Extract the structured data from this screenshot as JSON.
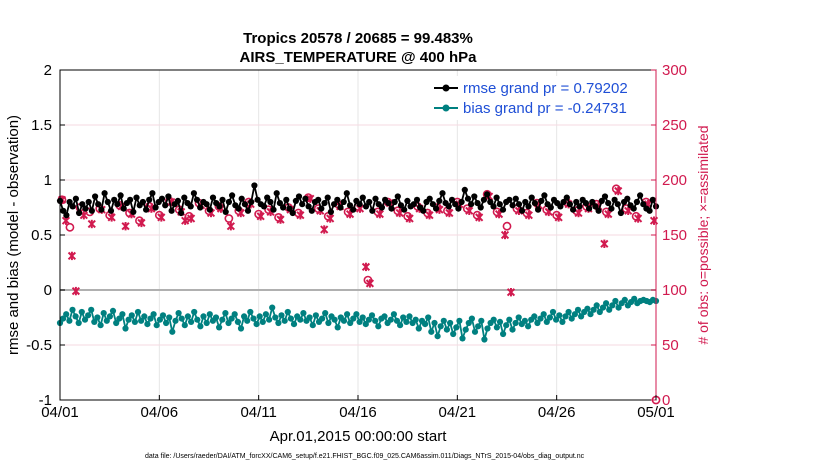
{
  "chart_data": {
    "type": "line",
    "title_line1": "Tropics 20578 / 20685 = 99.483%",
    "title_line2": "AIRS_TEMPERATURE @ 400 hPa",
    "xlabel": "Apr.01,2015 00:00:00 start",
    "ylabel_left": "rmse and bias (model - observation)",
    "ylabel_right": "# of obs: o=possible; ×=assimilated",
    "xlim": [
      0,
      30
    ],
    "ylim_left": [
      -1,
      2
    ],
    "ylim_right": [
      0,
      300
    ],
    "x_ticks": [
      0,
      5,
      10,
      15,
      20,
      25,
      30
    ],
    "x_tick_labels": [
      "04/01",
      "04/06",
      "04/11",
      "04/16",
      "04/21",
      "04/26",
      "05/01"
    ],
    "y_ticks_left": [
      -1,
      -0.5,
      0,
      0.5,
      1,
      1.5,
      2
    ],
    "y_tick_labels_left": [
      "-1",
      "-0.5",
      "0",
      "0.5",
      "1",
      "1.5",
      "2"
    ],
    "y_ticks_right": [
      0,
      50,
      100,
      150,
      200,
      250,
      300
    ],
    "y_tick_labels_right": [
      "0",
      "50",
      "100",
      "150",
      "200",
      "250",
      "300"
    ],
    "grid": true,
    "legend_position": "top-right",
    "footnote": "data file: /Users/raeder/DAI/ATM_forcXX/CAM6_setup/f.e21.FHIST_BGC.f09_025.CAM6assim.011/Diags_NTrS_2015-04/obs_diag_output.nc",
    "colors": {
      "rmse": "#000000",
      "bias": "#008080",
      "obs": "#d11a4f",
      "legend_text": "#1f4fd6",
      "zero_line": "#b0b0b0"
    },
    "series": [
      {
        "name": "rmse grand pr = 0.79202",
        "axis": "left",
        "values": [
          0.81,
          0.72,
          0.68,
          0.8,
          0.76,
          0.83,
          0.7,
          0.78,
          0.74,
          0.8,
          0.72,
          0.85,
          0.78,
          0.73,
          0.88,
          0.8,
          0.72,
          0.82,
          0.78,
          0.86,
          0.74,
          0.79,
          0.82,
          0.71,
          0.84,
          0.77,
          0.8,
          0.73,
          0.82,
          0.88,
          0.75,
          0.8,
          0.83,
          0.77,
          0.85,
          0.72,
          0.78,
          0.81,
          0.7,
          0.84,
          0.79,
          0.76,
          0.88,
          0.82,
          0.75,
          0.8,
          0.78,
          0.73,
          0.84,
          0.79,
          0.76,
          0.82,
          0.71,
          0.8,
          0.86,
          0.77,
          0.74,
          0.83,
          0.78,
          0.72,
          0.8,
          0.95,
          0.82,
          0.78,
          0.76,
          0.84,
          0.8,
          0.73,
          0.88,
          0.79,
          0.75,
          0.82,
          0.74,
          0.7,
          0.81,
          0.85,
          0.78,
          0.83,
          0.76,
          0.72,
          0.8,
          0.82,
          0.74,
          0.79,
          0.84,
          0.71,
          0.78,
          0.82,
          0.75,
          0.8,
          0.88,
          0.77,
          0.73,
          0.81,
          0.78,
          0.84,
          0.76,
          0.8,
          0.72,
          0.83,
          0.78,
          0.75,
          0.82,
          0.79,
          0.74,
          0.8,
          0.85,
          0.77,
          0.73,
          0.81,
          0.76,
          0.78,
          0.82,
          0.75,
          0.72,
          0.8,
          0.83,
          0.78,
          0.74,
          0.81,
          0.88,
          0.79,
          0.76,
          0.82,
          0.78,
          0.74,
          0.8,
          0.91,
          0.83,
          0.78,
          0.85,
          0.79,
          0.75,
          0.82,
          0.87,
          0.8,
          0.76,
          0.84,
          0.78,
          0.73,
          0.8,
          0.82,
          0.77,
          0.83,
          0.78,
          0.72,
          0.8,
          0.76,
          0.84,
          0.79,
          0.73,
          0.81,
          0.86,
          0.78,
          0.75,
          0.82,
          0.79,
          0.76,
          0.8,
          0.84,
          0.78,
          0.73,
          0.8,
          0.76,
          0.82,
          0.79,
          0.74,
          0.8,
          0.76,
          0.72,
          0.81,
          0.85,
          0.79,
          0.74,
          0.82,
          0.78,
          0.7,
          0.8,
          0.83,
          0.77,
          0.74,
          0.8,
          0.86,
          0.78,
          0.74,
          0.72,
          0.82,
          0.76
        ]
      },
      {
        "name": "bias grand pr = -0.24731",
        "axis": "left",
        "values": [
          -0.3,
          -0.26,
          -0.22,
          -0.28,
          -0.18,
          -0.24,
          -0.3,
          -0.2,
          -0.27,
          -0.23,
          -0.18,
          -0.29,
          -0.25,
          -0.32,
          -0.21,
          -0.28,
          -0.24,
          -0.19,
          -0.3,
          -0.26,
          -0.22,
          -0.35,
          -0.27,
          -0.23,
          -0.29,
          -0.2,
          -0.28,
          -0.24,
          -0.31,
          -0.26,
          -0.22,
          -0.32,
          -0.27,
          -0.23,
          -0.3,
          -0.25,
          -0.38,
          -0.28,
          -0.21,
          -0.26,
          -0.32,
          -0.24,
          -0.29,
          -0.2,
          -0.27,
          -0.33,
          -0.24,
          -0.3,
          -0.22,
          -0.28,
          -0.25,
          -0.34,
          -0.27,
          -0.21,
          -0.3,
          -0.26,
          -0.22,
          -0.29,
          -0.35,
          -0.24,
          -0.28,
          -0.2,
          -0.26,
          -0.31,
          -0.24,
          -0.29,
          -0.22,
          -0.27,
          -0.16,
          -0.25,
          -0.3,
          -0.23,
          -0.28,
          -0.2,
          -0.26,
          -0.31,
          -0.24,
          -0.27,
          -0.21,
          -0.28,
          -0.25,
          -0.32,
          -0.23,
          -0.29,
          -0.26,
          -0.21,
          -0.3,
          -0.24,
          -0.27,
          -0.34,
          -0.25,
          -0.28,
          -0.22,
          -0.3,
          -0.26,
          -0.22,
          -0.29,
          -0.25,
          -0.31,
          -0.27,
          -0.23,
          -0.28,
          -0.33,
          -0.26,
          -0.24,
          -0.3,
          -0.27,
          -0.22,
          -0.28,
          -0.32,
          -0.25,
          -0.29,
          -0.24,
          -0.3,
          -0.27,
          -0.35,
          -0.28,
          -0.31,
          -0.25,
          -0.38,
          -0.3,
          -0.42,
          -0.33,
          -0.28,
          -0.36,
          -0.3,
          -0.4,
          -0.34,
          -0.28,
          -0.44,
          -0.36,
          -0.3,
          -0.26,
          -0.38,
          -0.33,
          -0.28,
          -0.45,
          -0.35,
          -0.3,
          -0.27,
          -0.34,
          -0.29,
          -0.4,
          -0.32,
          -0.27,
          -0.36,
          -0.3,
          -0.25,
          -0.31,
          -0.28,
          -0.33,
          -0.27,
          -0.24,
          -0.3,
          -0.26,
          -0.22,
          -0.29,
          -0.25,
          -0.2,
          -0.27,
          -0.23,
          -0.29,
          -0.24,
          -0.2,
          -0.26,
          -0.22,
          -0.18,
          -0.24,
          -0.2,
          -0.17,
          -0.22,
          -0.18,
          -0.14,
          -0.2,
          -0.16,
          -0.12,
          -0.18,
          -0.14,
          -0.1,
          -0.16,
          -0.12,
          -0.09,
          -0.14,
          -0.11,
          -0.08,
          -0.12,
          -0.1,
          -0.09,
          -0.1,
          -0.11,
          -0.09,
          -0.1
        ]
      },
      {
        "name": "obs possible",
        "axis": "right",
        "marker": "o",
        "values": [
          {
            "x": 0.1,
            "y": 182
          },
          {
            "x": 0.5,
            "y": 157
          },
          {
            "x": 1.0,
            "y": 175
          },
          {
            "x": 1.5,
            "y": 171
          },
          {
            "x": 2.0,
            "y": 174
          },
          {
            "x": 2.5,
            "y": 168
          },
          {
            "x": 3.0,
            "y": 177
          },
          {
            "x": 3.5,
            "y": 170
          },
          {
            "x": 4.0,
            "y": 163
          },
          {
            "x": 4.5,
            "y": 176
          },
          {
            "x": 5.0,
            "y": 168
          },
          {
            "x": 5.5,
            "y": 181
          },
          {
            "x": 6.0,
            "y": 173
          },
          {
            "x": 6.5,
            "y": 167
          },
          {
            "x": 7.0,
            "y": 179
          },
          {
            "x": 7.5,
            "y": 172
          },
          {
            "x": 8.0,
            "y": 176
          },
          {
            "x": 8.5,
            "y": 165
          },
          {
            "x": 9.0,
            "y": 172
          },
          {
            "x": 9.5,
            "y": 180
          },
          {
            "x": 10.0,
            "y": 169
          },
          {
            "x": 10.5,
            "y": 173
          },
          {
            "x": 11.0,
            "y": 166
          },
          {
            "x": 11.5,
            "y": 175
          },
          {
            "x": 12.0,
            "y": 170
          },
          {
            "x": 12.5,
            "y": 184
          },
          {
            "x": 13.0,
            "y": 174
          },
          {
            "x": 13.5,
            "y": 167
          },
          {
            "x": 14.0,
            "y": 178
          },
          {
            "x": 14.5,
            "y": 171
          },
          {
            "x": 15.0,
            "y": 176
          },
          {
            "x": 15.5,
            "y": 109
          },
          {
            "x": 16.0,
            "y": 171
          },
          {
            "x": 16.5,
            "y": 180
          },
          {
            "x": 17.0,
            "y": 172
          },
          {
            "x": 17.5,
            "y": 167
          },
          {
            "x": 18.0,
            "y": 176
          },
          {
            "x": 18.5,
            "y": 170
          },
          {
            "x": 19.0,
            "y": 175
          },
          {
            "x": 19.5,
            "y": 172
          },
          {
            "x": 20.0,
            "y": 180
          },
          {
            "x": 20.5,
            "y": 174
          },
          {
            "x": 21.0,
            "y": 168
          },
          {
            "x": 21.5,
            "y": 187
          },
          {
            "x": 22.0,
            "y": 171
          },
          {
            "x": 22.5,
            "y": 158
          },
          {
            "x": 23.0,
            "y": 174
          },
          {
            "x": 23.5,
            "y": 170
          },
          {
            "x": 24.0,
            "y": 179
          },
          {
            "x": 24.5,
            "y": 173
          },
          {
            "x": 25.0,
            "y": 168
          },
          {
            "x": 25.5,
            "y": 180
          },
          {
            "x": 26.0,
            "y": 172
          },
          {
            "x": 26.5,
            "y": 176
          },
          {
            "x": 27.0,
            "y": 178
          },
          {
            "x": 27.5,
            "y": 171
          },
          {
            "x": 28.0,
            "y": 192
          },
          {
            "x": 28.5,
            "y": 174
          },
          {
            "x": 29.0,
            "y": 167
          },
          {
            "x": 29.5,
            "y": 180
          },
          {
            "x": 30.0,
            "y": 0
          }
        ]
      },
      {
        "name": "obs assimilated",
        "axis": "right",
        "marker": "x",
        "values": [
          {
            "x": 0.1,
            "y": 182
          },
          {
            "x": 0.3,
            "y": 163
          },
          {
            "x": 0.6,
            "y": 131
          },
          {
            "x": 0.8,
            "y": 99
          },
          {
            "x": 1.2,
            "y": 168
          },
          {
            "x": 1.6,
            "y": 160
          },
          {
            "x": 2.1,
            "y": 173
          },
          {
            "x": 2.6,
            "y": 166
          },
          {
            "x": 3.1,
            "y": 176
          },
          {
            "x": 3.3,
            "y": 158
          },
          {
            "x": 3.6,
            "y": 169
          },
          {
            "x": 4.1,
            "y": 161
          },
          {
            "x": 4.6,
            "y": 174
          },
          {
            "x": 5.1,
            "y": 166
          },
          {
            "x": 5.6,
            "y": 180
          },
          {
            "x": 6.1,
            "y": 171
          },
          {
            "x": 6.3,
            "y": 163
          },
          {
            "x": 6.6,
            "y": 165
          },
          {
            "x": 7.1,
            "y": 177
          },
          {
            "x": 7.6,
            "y": 170
          },
          {
            "x": 8.1,
            "y": 174
          },
          {
            "x": 8.6,
            "y": 158
          },
          {
            "x": 9.1,
            "y": 170
          },
          {
            "x": 9.6,
            "y": 178
          },
          {
            "x": 10.1,
            "y": 167
          },
          {
            "x": 10.6,
            "y": 171
          },
          {
            "x": 11.1,
            "y": 164
          },
          {
            "x": 11.6,
            "y": 173
          },
          {
            "x": 12.1,
            "y": 168
          },
          {
            "x": 12.6,
            "y": 183
          },
          {
            "x": 13.1,
            "y": 172
          },
          {
            "x": 13.3,
            "y": 155
          },
          {
            "x": 13.6,
            "y": 165
          },
          {
            "x": 14.1,
            "y": 176
          },
          {
            "x": 14.6,
            "y": 169
          },
          {
            "x": 15.1,
            "y": 174
          },
          {
            "x": 15.4,
            "y": 121
          },
          {
            "x": 15.6,
            "y": 106
          },
          {
            "x": 16.1,
            "y": 169
          },
          {
            "x": 16.6,
            "y": 179
          },
          {
            "x": 17.1,
            "y": 170
          },
          {
            "x": 17.6,
            "y": 165
          },
          {
            "x": 18.1,
            "y": 174
          },
          {
            "x": 18.6,
            "y": 168
          },
          {
            "x": 19.1,
            "y": 173
          },
          {
            "x": 19.6,
            "y": 170
          },
          {
            "x": 20.1,
            "y": 178
          },
          {
            "x": 20.6,
            "y": 172
          },
          {
            "x": 21.1,
            "y": 166
          },
          {
            "x": 21.6,
            "y": 185
          },
          {
            "x": 22.1,
            "y": 169
          },
          {
            "x": 22.4,
            "y": 150
          },
          {
            "x": 22.7,
            "y": 98
          },
          {
            "x": 23.1,
            "y": 172
          },
          {
            "x": 23.6,
            "y": 168
          },
          {
            "x": 24.1,
            "y": 177
          },
          {
            "x": 24.6,
            "y": 171
          },
          {
            "x": 25.1,
            "y": 166
          },
          {
            "x": 25.6,
            "y": 178
          },
          {
            "x": 26.1,
            "y": 170
          },
          {
            "x": 26.6,
            "y": 174
          },
          {
            "x": 27.1,
            "y": 176
          },
          {
            "x": 27.4,
            "y": 142
          },
          {
            "x": 27.6,
            "y": 169
          },
          {
            "x": 28.1,
            "y": 190
          },
          {
            "x": 28.6,
            "y": 172
          },
          {
            "x": 29.1,
            "y": 165
          },
          {
            "x": 29.6,
            "y": 178
          },
          {
            "x": 29.9,
            "y": 163
          }
        ]
      }
    ]
  }
}
